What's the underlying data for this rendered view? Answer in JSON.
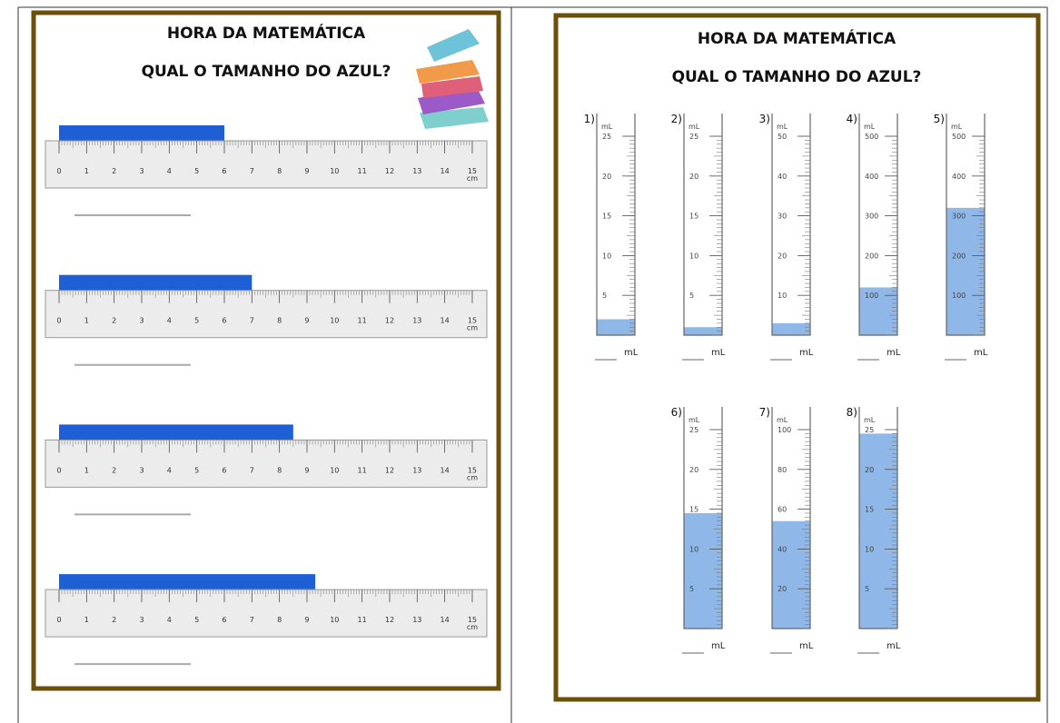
{
  "left": {
    "title": "HORA DA MATEMÁTICA",
    "subtitle": "QUAL O TAMANHO DO AZUL?",
    "ruler": {
      "labels": [
        0,
        1,
        2,
        3,
        4,
        5,
        6,
        7,
        8,
        9,
        10,
        11,
        12,
        13,
        14,
        15
      ],
      "unit": "cm"
    },
    "bars": [
      6,
      7,
      8.5,
      9.3
    ]
  },
  "right": {
    "title": "HORA DA MATEMÁTICA",
    "subtitle": "QUAL O TAMANHO DO AZUL?",
    "cylinders": [
      {
        "label": "1)",
        "unit": "mL",
        "ylim": [
          0,
          25
        ],
        "yticks": [
          5,
          10,
          15,
          20,
          25
        ],
        "value": 2,
        "answer_unit": "mL"
      },
      {
        "label": "2)",
        "unit": "mL",
        "ylim": [
          0,
          25
        ],
        "yticks": [
          5,
          10,
          15,
          20,
          25
        ],
        "value": 1,
        "answer_unit": "mL"
      },
      {
        "label": "3)",
        "unit": "mL",
        "ylim": [
          0,
          50
        ],
        "yticks": [
          10,
          20,
          30,
          40,
          50
        ],
        "value": 3,
        "answer_unit": "mL"
      },
      {
        "label": "4)",
        "unit": "mL",
        "ylim": [
          0,
          500
        ],
        "yticks": [
          100,
          200,
          300,
          400,
          500
        ],
        "value": 120,
        "answer_unit": "mL"
      },
      {
        "label": "5)",
        "unit": "mL",
        "ylim": [
          0,
          500
        ],
        "yticks": [
          100,
          200,
          300,
          400,
          500
        ],
        "value": 320,
        "answer_unit": "mL"
      },
      {
        "label": "6)",
        "unit": "mL",
        "ylim": [
          0,
          25
        ],
        "yticks": [
          5,
          10,
          15,
          20,
          25
        ],
        "value": 14.5,
        "answer_unit": "mL"
      },
      {
        "label": "7)",
        "unit": "mL",
        "ylim": [
          0,
          100
        ],
        "yticks": [
          20,
          40,
          60,
          80,
          100
        ],
        "value": 54,
        "answer_unit": "mL"
      },
      {
        "label": "8)",
        "unit": "mL",
        "ylim": [
          0,
          25
        ],
        "yticks": [
          5,
          10,
          15,
          20,
          25
        ],
        "value": 24.5,
        "answer_unit": "mL"
      }
    ]
  }
}
